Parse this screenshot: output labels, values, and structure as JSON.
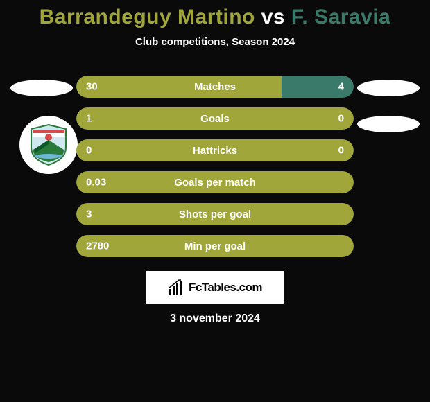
{
  "background_color": "#0a0a0a",
  "title": {
    "player1": "Barrandeguy Martino",
    "vs": "vs",
    "player2": "F. Saravia",
    "player1_color": "#a0a63a",
    "vs_color": "#ffffff",
    "player2_color": "#3a7a6a"
  },
  "subtitle": "Club competitions, Season 2024",
  "bar_colors": {
    "left": "#a0a63a",
    "right": "#3a7a6a"
  },
  "club_badge": {
    "sky": "#cfe8f0",
    "hill": "#2a7a3a",
    "shadow": "#0d5a28",
    "sun": "#d94a4a",
    "stripe": "#d94a4a",
    "water": "#6fb8d4",
    "border": "#2a7a3a"
  },
  "stats": [
    {
      "label": "Matches",
      "left_val": "30",
      "right_val": "4",
      "left_pct": 74,
      "right_pct": 26
    },
    {
      "label": "Goals",
      "left_val": "1",
      "right_val": "0",
      "left_pct": 100,
      "right_pct": 0
    },
    {
      "label": "Hattricks",
      "left_val": "0",
      "right_val": "0",
      "left_pct": 100,
      "right_pct": 0
    },
    {
      "label": "Goals per match",
      "left_val": "0.03",
      "right_val": "",
      "left_pct": 100,
      "right_pct": 0
    },
    {
      "label": "Shots per goal",
      "left_val": "3",
      "right_val": "",
      "left_pct": 100,
      "right_pct": 0
    },
    {
      "label": "Min per goal",
      "left_val": "2780",
      "right_val": "",
      "left_pct": 100,
      "right_pct": 0
    }
  ],
  "footer": {
    "brand": "FcTables.com",
    "date": "3 november 2024"
  }
}
